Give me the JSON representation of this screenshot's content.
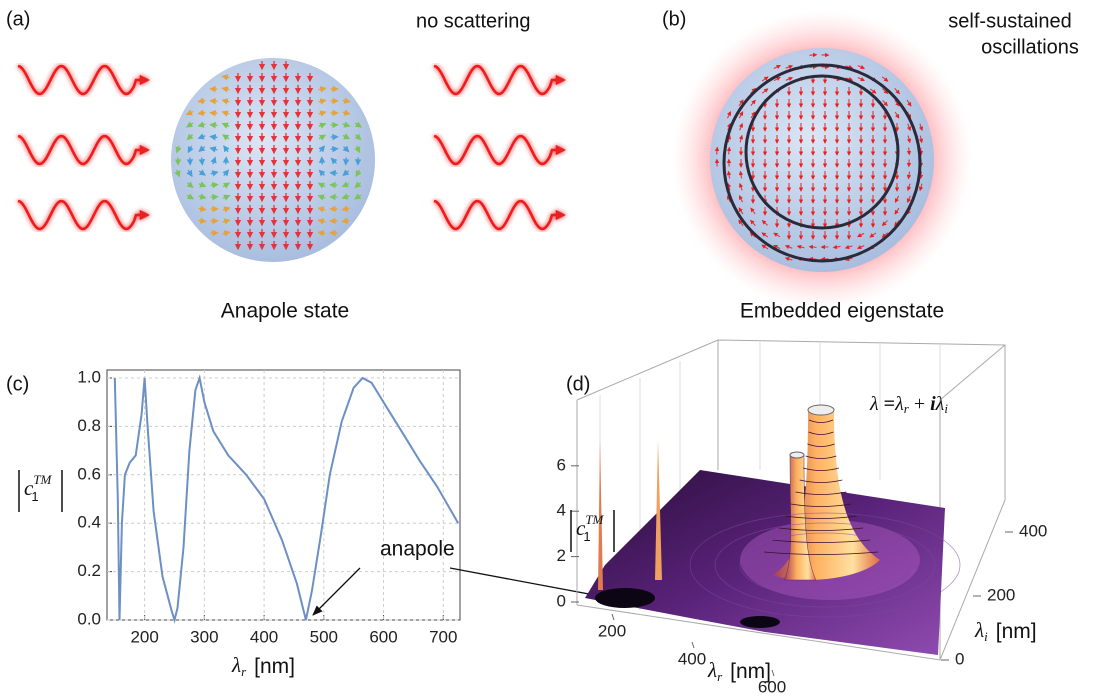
{
  "panels": {
    "a": {
      "label": "(a)",
      "note": "no scattering",
      "caption": "Anapole state"
    },
    "b": {
      "label": "(b)",
      "note": [
        "self-sustained",
        "oscillations"
      ],
      "caption": "Embedded eigenstate"
    },
    "c": {
      "label": "(c)"
    },
    "d": {
      "label": "(d)"
    }
  },
  "annotation": "anapole",
  "chart_data": {
    "type": "line",
    "color": "#6d8fc4",
    "x": [
      150,
      155,
      158,
      162,
      167,
      175,
      185,
      195,
      200,
      205,
      215,
      230,
      245,
      250,
      255,
      265,
      275,
      285,
      292,
      300,
      315,
      340,
      370,
      400,
      430,
      455,
      470,
      480,
      495,
      510,
      530,
      550,
      565,
      580,
      600,
      630,
      660,
      690,
      725
    ],
    "values": [
      1.0,
      0.5,
      0.0,
      0.4,
      0.6,
      0.65,
      0.68,
      0.85,
      1.0,
      0.8,
      0.45,
      0.18,
      0.04,
      0.0,
      0.05,
      0.3,
      0.7,
      0.95,
      1.0,
      0.9,
      0.78,
      0.68,
      0.6,
      0.5,
      0.33,
      0.15,
      0.0,
      0.12,
      0.35,
      0.6,
      0.82,
      0.96,
      1.0,
      0.98,
      0.9,
      0.78,
      0.66,
      0.55,
      0.4
    ],
    "xlim": [
      137,
      728
    ],
    "ylim": [
      0,
      1
    ],
    "xticks": [
      200,
      300,
      400,
      500,
      600,
      700
    ],
    "yticks": [
      {
        "value": 0,
        "label": "0.0"
      },
      0.2,
      0.4,
      0.6,
      0.8,
      {
        "value": 1,
        "label": "1.0"
      }
    ],
    "grid": true,
    "xlabel": {
      "symbol": "λ",
      "sub": "r",
      "unit": "[nm]"
    },
    "ylabel": {
      "symbol": "c",
      "sub": "1",
      "sup": "TM"
    }
  },
  "surface_3d": {
    "zticks": [
      0,
      2,
      4,
      6
    ],
    "xticks": [
      200,
      400,
      600
    ],
    "yticks": [
      0,
      200,
      400
    ],
    "zlabel": {
      "symbol": "c",
      "sub": "1",
      "sup": "TM"
    },
    "xlabel": {
      "symbol": "λ",
      "sub": "r",
      "unit": "[nm]"
    },
    "ylabel": {
      "symbol": "λ",
      "sub": "i",
      "unit": "[nm]"
    },
    "formula": {
      "lhs": "λ",
      "eq": "=",
      "t1": "λ",
      "t1_sub": "r",
      "plus": "+",
      "imag": "i",
      "t2": "λ",
      "t2_sub": "i"
    }
  }
}
